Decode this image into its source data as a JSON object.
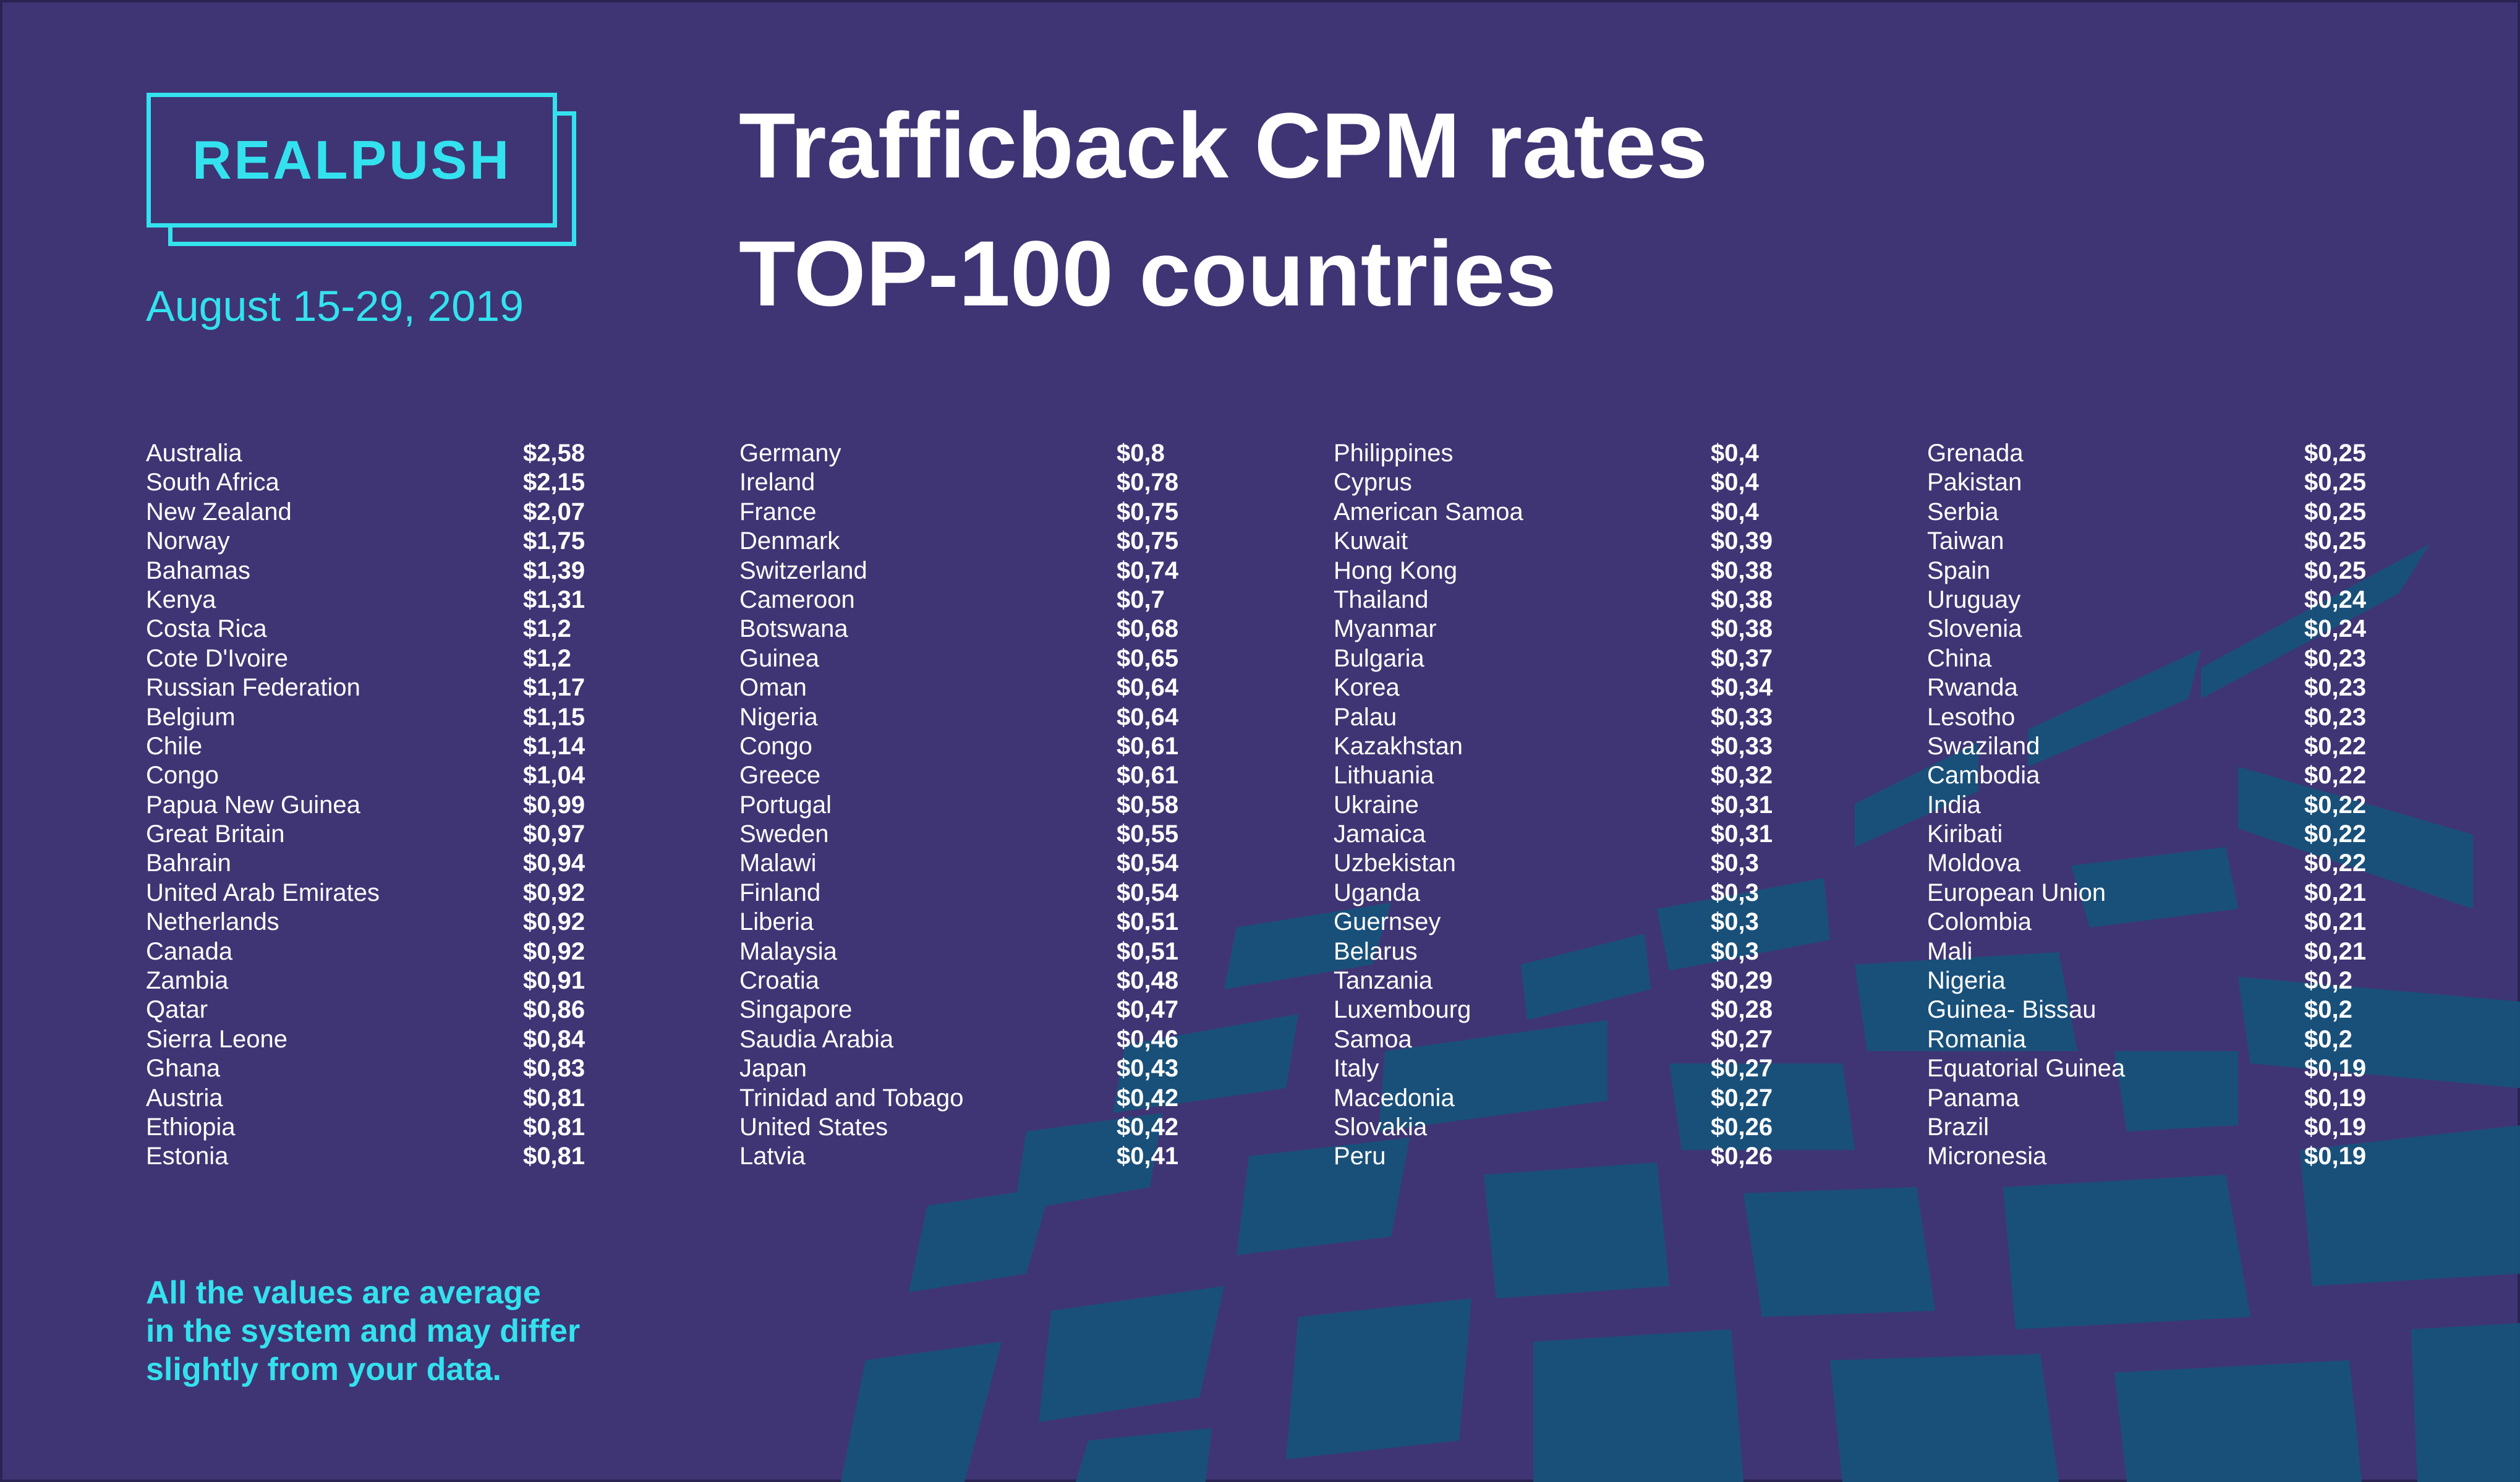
{
  "logo": {
    "text": "REALPUSH"
  },
  "date_range": "August 15-29, 2019",
  "title": {
    "line1": "Trafficback CPM rates",
    "line2": "TOP-100 countries"
  },
  "note": {
    "line1": "All the values are average",
    "line2": "in the system and may differ",
    "line3": "slightly from your data."
  },
  "colors": {
    "background": "#3f3574",
    "accent": "#33e2ee",
    "decor": "#17527a",
    "text": "#ffffff"
  },
  "columns": [
    [
      {
        "country": "Australia",
        "rate": "$2,58"
      },
      {
        "country": "South Africa",
        "rate": "$2,15"
      },
      {
        "country": "New Zealand",
        "rate": "$2,07"
      },
      {
        "country": "Norway",
        "rate": "$1,75"
      },
      {
        "country": "Bahamas",
        "rate": "$1,39"
      },
      {
        "country": "Kenya",
        "rate": "$1,31"
      },
      {
        "country": "Costa Rica",
        "rate": "$1,2"
      },
      {
        "country": "Cote D'Ivoire",
        "rate": "$1,2"
      },
      {
        "country": "Russian Federation",
        "rate": "$1,17"
      },
      {
        "country": "Belgium",
        "rate": "$1,15"
      },
      {
        "country": "Chile",
        "rate": "$1,14"
      },
      {
        "country": "Congo",
        "rate": "$1,04"
      },
      {
        "country": "Papua New Guinea",
        "rate": "$0,99"
      },
      {
        "country": "Great Britain",
        "rate": "$0,97"
      },
      {
        "country": "Bahrain",
        "rate": "$0,94"
      },
      {
        "country": "United Arab Emirates",
        "rate": "$0,92"
      },
      {
        "country": "Netherlands",
        "rate": "$0,92"
      },
      {
        "country": "Canada",
        "rate": "$0,92"
      },
      {
        "country": "Zambia",
        "rate": "$0,91"
      },
      {
        "country": "Qatar",
        "rate": "$0,86"
      },
      {
        "country": "Sierra Leone",
        "rate": "$0,84"
      },
      {
        "country": "Ghana",
        "rate": "$0,83"
      },
      {
        "country": "Austria",
        "rate": "$0,81"
      },
      {
        "country": "Ethiopia",
        "rate": "$0,81"
      },
      {
        "country": "Estonia",
        "rate": "$0,81"
      }
    ],
    [
      {
        "country": "Germany",
        "rate": "$0,8"
      },
      {
        "country": "Ireland",
        "rate": "$0,78"
      },
      {
        "country": "France",
        "rate": "$0,75"
      },
      {
        "country": "Denmark",
        "rate": "$0,75"
      },
      {
        "country": "Switzerland",
        "rate": "$0,74"
      },
      {
        "country": "Cameroon",
        "rate": "$0,7"
      },
      {
        "country": "Botswana",
        "rate": "$0,68"
      },
      {
        "country": "Guinea",
        "rate": "$0,65"
      },
      {
        "country": "Oman",
        "rate": "$0,64"
      },
      {
        "country": "Nigeria",
        "rate": "$0,64"
      },
      {
        "country": "Congo",
        "rate": "$0,61"
      },
      {
        "country": "Greece",
        "rate": "$0,61"
      },
      {
        "country": "Portugal",
        "rate": "$0,58"
      },
      {
        "country": "Sweden",
        "rate": "$0,55"
      },
      {
        "country": "Malawi",
        "rate": "$0,54"
      },
      {
        "country": "Finland",
        "rate": "$0,54"
      },
      {
        "country": "Liberia",
        "rate": "$0,51"
      },
      {
        "country": "Malaysia",
        "rate": "$0,51"
      },
      {
        "country": "Croatia",
        "rate": "$0,48"
      },
      {
        "country": "Singapore",
        "rate": "$0,47"
      },
      {
        "country": "Saudia Arabia",
        "rate": "$0,46"
      },
      {
        "country": "Japan",
        "rate": "$0,43"
      },
      {
        "country": "Trinidad and Tobago",
        "rate": "$0,42"
      },
      {
        "country": "United States",
        "rate": "$0,42"
      },
      {
        "country": "Latvia",
        "rate": "$0,41"
      }
    ],
    [
      {
        "country": "Philippines",
        "rate": "$0,4"
      },
      {
        "country": "Cyprus",
        "rate": "$0,4"
      },
      {
        "country": "American Samoa",
        "rate": "$0,4"
      },
      {
        "country": "Kuwait",
        "rate": "$0,39"
      },
      {
        "country": "Hong Kong",
        "rate": "$0,38"
      },
      {
        "country": "Thailand",
        "rate": "$0,38"
      },
      {
        "country": "Myanmar",
        "rate": "$0,38"
      },
      {
        "country": "Bulgaria",
        "rate": "$0,37"
      },
      {
        "country": "Korea",
        "rate": "$0,34"
      },
      {
        "country": "Palau",
        "rate": "$0,33"
      },
      {
        "country": "Kazakhstan",
        "rate": "$0,33"
      },
      {
        "country": "Lithuania",
        "rate": "$0,32"
      },
      {
        "country": "Ukraine",
        "rate": "$0,31"
      },
      {
        "country": "Jamaica",
        "rate": "$0,31"
      },
      {
        "country": "Uzbekistan",
        "rate": "$0,3"
      },
      {
        "country": "Uganda",
        "rate": "$0,3"
      },
      {
        "country": "Guernsey",
        "rate": "$0,3"
      },
      {
        "country": "Belarus",
        "rate": "$0,3"
      },
      {
        "country": "Tanzania",
        "rate": "$0,29"
      },
      {
        "country": "Luxembourg",
        "rate": "$0,28"
      },
      {
        "country": "Samoa",
        "rate": "$0,27"
      },
      {
        "country": "Italy",
        "rate": "$0,27"
      },
      {
        "country": "Macedonia",
        "rate": "$0,27"
      },
      {
        "country": "Slovakia",
        "rate": "$0,26"
      },
      {
        "country": "Peru",
        "rate": "$0,26"
      }
    ],
    [
      {
        "country": "Grenada",
        "rate": "$0,25"
      },
      {
        "country": "Pakistan",
        "rate": "$0,25"
      },
      {
        "country": "Serbia",
        "rate": "$0,25"
      },
      {
        "country": "Taiwan",
        "rate": "$0,25"
      },
      {
        "country": "Spain",
        "rate": "$0,25"
      },
      {
        "country": "Uruguay",
        "rate": "$0,24"
      },
      {
        "country": "Slovenia",
        "rate": "$0,24"
      },
      {
        "country": "China",
        "rate": "$0,23"
      },
      {
        "country": "Rwanda",
        "rate": "$0,23"
      },
      {
        "country": "Lesotho",
        "rate": "$0,23"
      },
      {
        "country": "Swaziland",
        "rate": "$0,22"
      },
      {
        "country": "Cambodia",
        "rate": "$0,22"
      },
      {
        "country": "India",
        "rate": "$0,22"
      },
      {
        "country": "Kiribati",
        "rate": "$0,22"
      },
      {
        "country": "Moldova",
        "rate": "$0,22"
      },
      {
        "country": "European Union",
        "rate": "$0,21"
      },
      {
        "country": "Colombia",
        "rate": "$0,21"
      },
      {
        "country": "Mali",
        "rate": "$0,21"
      },
      {
        "country": "Nigeria",
        "rate": "$0,2"
      },
      {
        "country": "Guinea- Bissau",
        "rate": "$0,2"
      },
      {
        "country": "Romania",
        "rate": "$0,2"
      },
      {
        "country": "Equatorial Guinea",
        "rate": "$0,19"
      },
      {
        "country": "Panama",
        "rate": "$0,19"
      },
      {
        "country": "Brazil",
        "rate": "$0,19"
      },
      {
        "country": "Micronesia",
        "rate": "$0,19"
      }
    ]
  ]
}
